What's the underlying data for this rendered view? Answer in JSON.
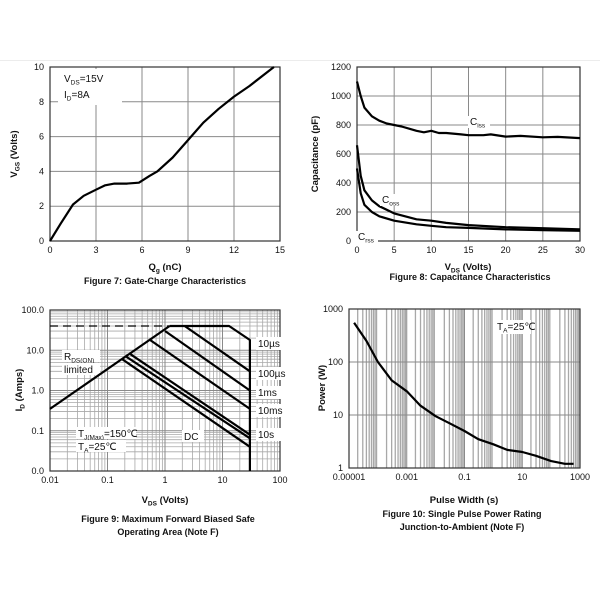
{
  "chart_data": [
    {
      "id": "fig7",
      "type": "line",
      "caption": "Figure 7: Gate-Charge Characteristics",
      "xlabel": [
        {
          "t": "Q"
        },
        {
          "t": "g",
          "sub": true
        },
        {
          "t": " (nC)"
        }
      ],
      "ylabel": [
        {
          "t": "V"
        },
        {
          "t": "GS",
          "sub": true
        },
        {
          "t": " (Volts)"
        }
      ],
      "xscale": "linear",
      "yscale": "linear",
      "xlim": [
        0,
        15
      ],
      "ylim": [
        0,
        10
      ],
      "xticks": [
        0,
        3,
        6,
        9,
        12,
        15
      ],
      "yticks": [
        0,
        2,
        4,
        6,
        8,
        10
      ],
      "xtick_labels": [
        "0",
        "3",
        "6",
        "9",
        "12",
        "15"
      ],
      "ytick_labels": [
        "0",
        "2",
        "4",
        "6",
        "8",
        "10"
      ],
      "grid": true,
      "annotations": [
        {
          "parts": [
            {
              "t": "V"
            },
            {
              "t": "DS",
              "sub": true
            },
            {
              "t": "=15V"
            }
          ]
        },
        {
          "parts": [
            {
              "t": "I"
            },
            {
              "t": "D",
              "sub": true
            },
            {
              "t": "=8A"
            }
          ]
        }
      ],
      "series": [
        {
          "x": [
            0,
            0.7,
            1.5,
            2.2,
            3,
            3.6,
            4.2,
            5,
            5.8,
            6.5,
            7,
            8,
            9,
            10,
            11,
            12,
            13,
            14.6
          ],
          "y": [
            0,
            1.0,
            2.1,
            2.6,
            2.95,
            3.2,
            3.3,
            3.3,
            3.35,
            3.75,
            4.0,
            4.8,
            5.8,
            6.8,
            7.6,
            8.3,
            8.9,
            10
          ]
        }
      ]
    },
    {
      "id": "fig8",
      "type": "line",
      "caption": "Figure 8: Capacitance Characteristics",
      "xlabel": [
        {
          "t": "V"
        },
        {
          "t": "DS",
          "sub": true
        },
        {
          "t": " (Volts)"
        }
      ],
      "ylabel": [
        {
          "t": "Capacitance (pF)"
        }
      ],
      "xscale": "linear",
      "yscale": "linear",
      "xlim": [
        0,
        30
      ],
      "ylim": [
        0,
        1200
      ],
      "xticks": [
        0,
        5,
        10,
        15,
        20,
        25,
        30
      ],
      "yticks": [
        0,
        200,
        400,
        600,
        800,
        1000,
        1200
      ],
      "xtick_labels": [
        "0",
        "5",
        "10",
        "15",
        "20",
        "25",
        "30"
      ],
      "ytick_labels": [
        "0",
        "200",
        "400",
        "600",
        "800",
        "1000",
        "1200"
      ],
      "grid": true,
      "series": [
        {
          "name_parts": [
            {
              "t": "C"
            },
            {
              "t": "iss",
              "sub": true
            }
          ],
          "x": [
            0,
            0.5,
            1,
            2,
            3,
            4,
            6,
            8,
            9,
            10,
            11,
            12,
            14,
            15,
            17,
            18,
            20,
            22,
            25,
            27,
            30
          ],
          "y": [
            1100,
            1000,
            920,
            860,
            830,
            810,
            790,
            760,
            750,
            760,
            745,
            745,
            735,
            730,
            730,
            735,
            720,
            725,
            715,
            718,
            710
          ]
        },
        {
          "name_parts": [
            {
              "t": "C"
            },
            {
              "t": "oss",
              "sub": true
            }
          ],
          "x": [
            0,
            0.5,
            1,
            2,
            3,
            5,
            8,
            10,
            12,
            15,
            20,
            25,
            30
          ],
          "y": [
            660,
            450,
            350,
            280,
            240,
            190,
            150,
            140,
            125,
            110,
            95,
            88,
            80
          ]
        },
        {
          "name_parts": [
            {
              "t": "C"
            },
            {
              "t": "rss",
              "sub": true
            }
          ],
          "x": [
            0,
            0.5,
            1,
            2,
            3,
            5,
            8,
            10,
            12,
            15,
            20,
            25,
            30
          ],
          "y": [
            500,
            330,
            250,
            200,
            170,
            140,
            115,
            105,
            95,
            90,
            80,
            75,
            70
          ]
        }
      ]
    },
    {
      "id": "fig9",
      "type": "line",
      "caption": "Figure 9: Maximum Forward Biased Safe",
      "caption2": "Operating Area (Note F)",
      "xlabel": [
        {
          "t": "V"
        },
        {
          "t": "DS",
          "sub": true
        },
        {
          "t": " (Volts)"
        }
      ],
      "ylabel": [
        {
          "t": "I"
        },
        {
          "t": "D",
          "sub": true
        },
        {
          "t": " (Amps)"
        }
      ],
      "xscale": "log",
      "yscale": "log",
      "xlim": [
        0.01,
        100
      ],
      "ylim": [
        0.01,
        100
      ],
      "xticks": [
        0.01,
        0.1,
        1,
        10,
        100
      ],
      "yticks": [
        0.01,
        0.1,
        1,
        10,
        100
      ],
      "xtick_labels": [
        "0.01",
        "0.1",
        "1",
        "10",
        "100"
      ],
      "ytick_labels": [
        "0.0",
        "0.1",
        "1.0",
        "10.0",
        "100.0"
      ],
      "grid": true,
      "annotations": [
        {
          "parts": [
            {
              "t": "R"
            },
            {
              "t": "DS(ON)",
              "sub": true
            }
          ]
        },
        {
          "parts": [
            {
              "t": "limited"
            }
          ]
        },
        {
          "parts": [
            {
              "t": "T"
            },
            {
              "t": "J(Max)",
              "sub": true
            },
            {
              "t": "=150℃"
            }
          ]
        },
        {
          "parts": [
            {
              "t": "T"
            },
            {
              "t": "A",
              "sub": true
            },
            {
              "t": "=25℃"
            }
          ]
        },
        {
          "parts": [
            {
              "t": "DC"
            }
          ]
        }
      ],
      "series": [
        {
          "name": "RDS(ON) limited",
          "x": [
            0.01,
            1.2
          ],
          "y": [
            0.35,
            40
          ]
        },
        {
          "name": "limit",
          "x": [
            1.2,
            13,
            30,
            30
          ],
          "y": [
            40,
            40,
            18,
            0.01
          ]
        },
        {
          "name": "dashed",
          "style": "dashed",
          "x": [
            0.01,
            1.2
          ],
          "y": [
            40,
            40
          ]
        },
        {
          "name": "10µs",
          "x": [
            2.2,
            30
          ],
          "y": [
            40,
            3
          ]
        },
        {
          "name": "100µs",
          "x": [
            1.0,
            30
          ],
          "y": [
            30,
            1.0
          ]
        },
        {
          "name": "1ms",
          "x": [
            0.55,
            30
          ],
          "y": [
            18,
            0.35
          ]
        },
        {
          "name": "10ms",
          "x": [
            0.25,
            30
          ],
          "y": [
            8,
            0.08
          ]
        },
        {
          "name": "10s",
          "x": [
            0.21,
            30
          ],
          "y": [
            7,
            0.065
          ]
        },
        {
          "name": "DC",
          "x": [
            0.18,
            30
          ],
          "y": [
            6,
            0.04
          ]
        }
      ],
      "line_labels": [
        "10µs",
        "100µs",
        "1ms",
        "10ms",
        "10s"
      ]
    },
    {
      "id": "fig10",
      "type": "line",
      "caption": "Figure 10: Single Pulse Power Rating",
      "caption2": "Junction-to-Ambient (Note F)",
      "xlabel": [
        {
          "t": "Pulse Width (s)"
        }
      ],
      "ylabel": [
        {
          "t": "Power (W)"
        }
      ],
      "xscale": "log",
      "yscale": "log",
      "xlim": [
        1e-05,
        1000
      ],
      "ylim": [
        1,
        1000
      ],
      "xticks": [
        1e-05,
        0.001,
        0.1,
        10,
        1000
      ],
      "yticks": [
        1,
        10,
        100,
        1000
      ],
      "xtick_labels": [
        "0.00001",
        "0.001",
        "0.1",
        "10",
        "1000"
      ],
      "ytick_labels": [
        "1",
        "10",
        "100",
        "1000"
      ],
      "grid": true,
      "annotations": [
        {
          "parts": [
            {
              "t": "T"
            },
            {
              "t": "A",
              "sub": true
            },
            {
              "t": "=25℃"
            }
          ]
        }
      ],
      "series": [
        {
          "x": [
            1.5e-05,
            4e-05,
            0.0001,
            0.0003,
            0.001,
            0.003,
            0.01,
            0.03,
            0.1,
            0.3,
            1,
            3,
            10,
            30,
            100,
            300,
            600
          ],
          "y": [
            550,
            250,
            100,
            45,
            28,
            15,
            9.5,
            7,
            5,
            3.5,
            2.8,
            2.2,
            2,
            1.7,
            1.35,
            1.2,
            1.2
          ]
        }
      ]
    }
  ],
  "colors": {
    "line": "#000000",
    "grid": "#8a8a8a",
    "minor_grid": "#a8a8a8"
  }
}
